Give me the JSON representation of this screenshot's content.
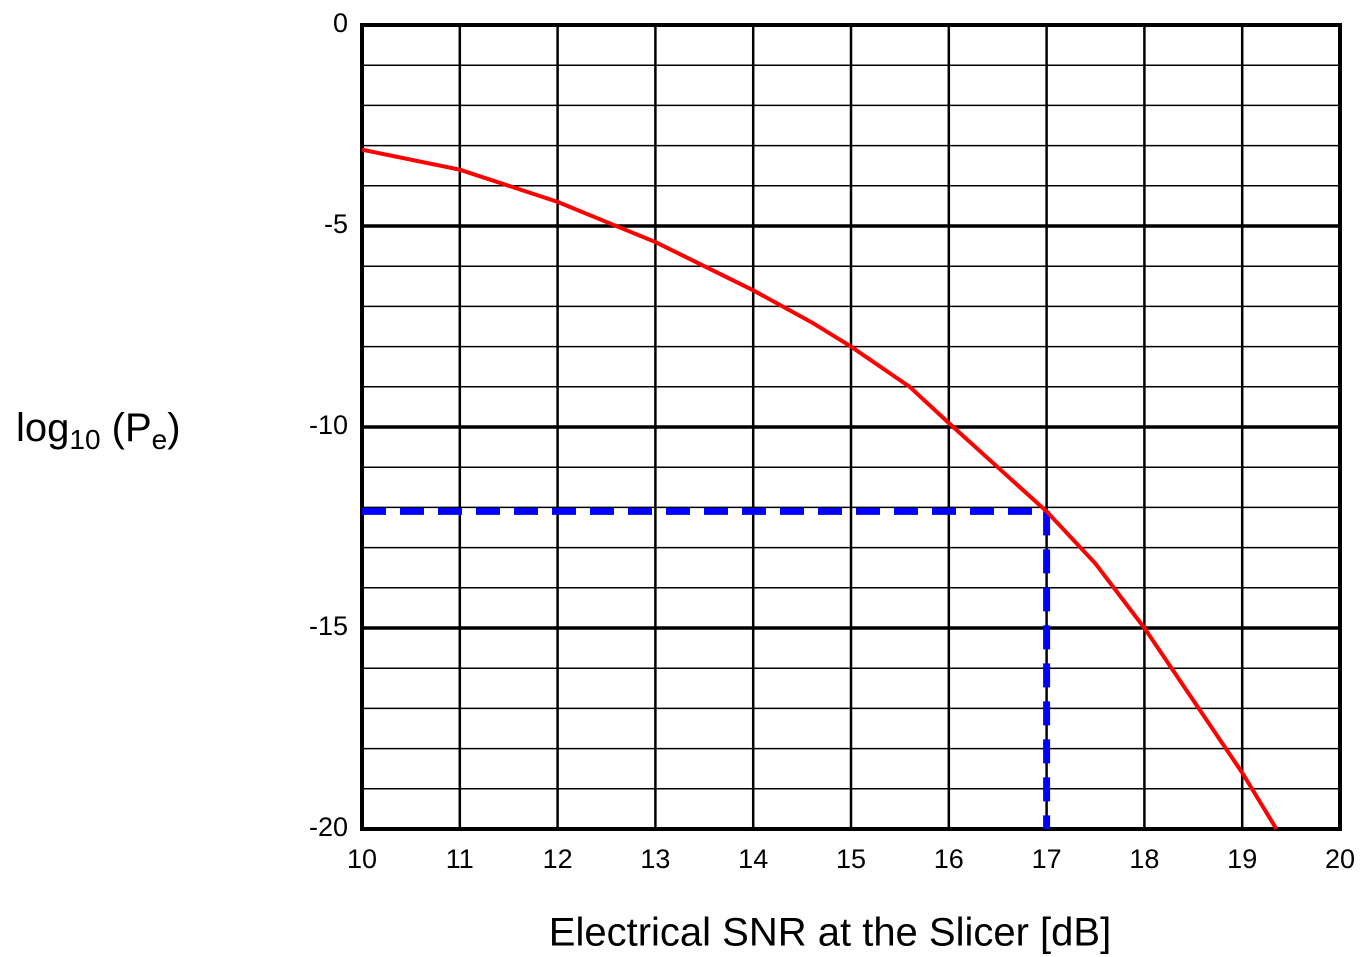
{
  "chart_data": {
    "type": "line",
    "x_label": "Electrical SNR at the Slicer [dB]",
    "y_label_parts": [
      "log",
      "10",
      " (P",
      "e",
      ")"
    ],
    "xlim": [
      10,
      20
    ],
    "ylim": [
      -20,
      0
    ],
    "xticks": [
      10,
      11,
      12,
      13,
      14,
      15,
      16,
      17,
      18,
      19,
      20
    ],
    "yticks": [
      0,
      -5,
      -10,
      -15,
      -20
    ],
    "grid": true,
    "minor_y_step": 1,
    "series": [
      {
        "color": "#ff0000",
        "x": [
          10,
          11,
          12,
          13,
          14,
          14.6,
          15,
          15.6,
          16,
          16.5,
          17,
          17.5,
          18,
          18.5,
          19,
          19.35
        ],
        "values": [
          -3.1,
          -3.6,
          -4.4,
          -5.4,
          -6.6,
          -7.4,
          -8.0,
          -9.0,
          -9.9,
          -11.0,
          -12.1,
          -13.4,
          -15.0,
          -16.8,
          -18.6,
          -20
        ]
      }
    ],
    "reference": {
      "x": 17,
      "y": -12.1,
      "color": "#0000ff"
    }
  }
}
